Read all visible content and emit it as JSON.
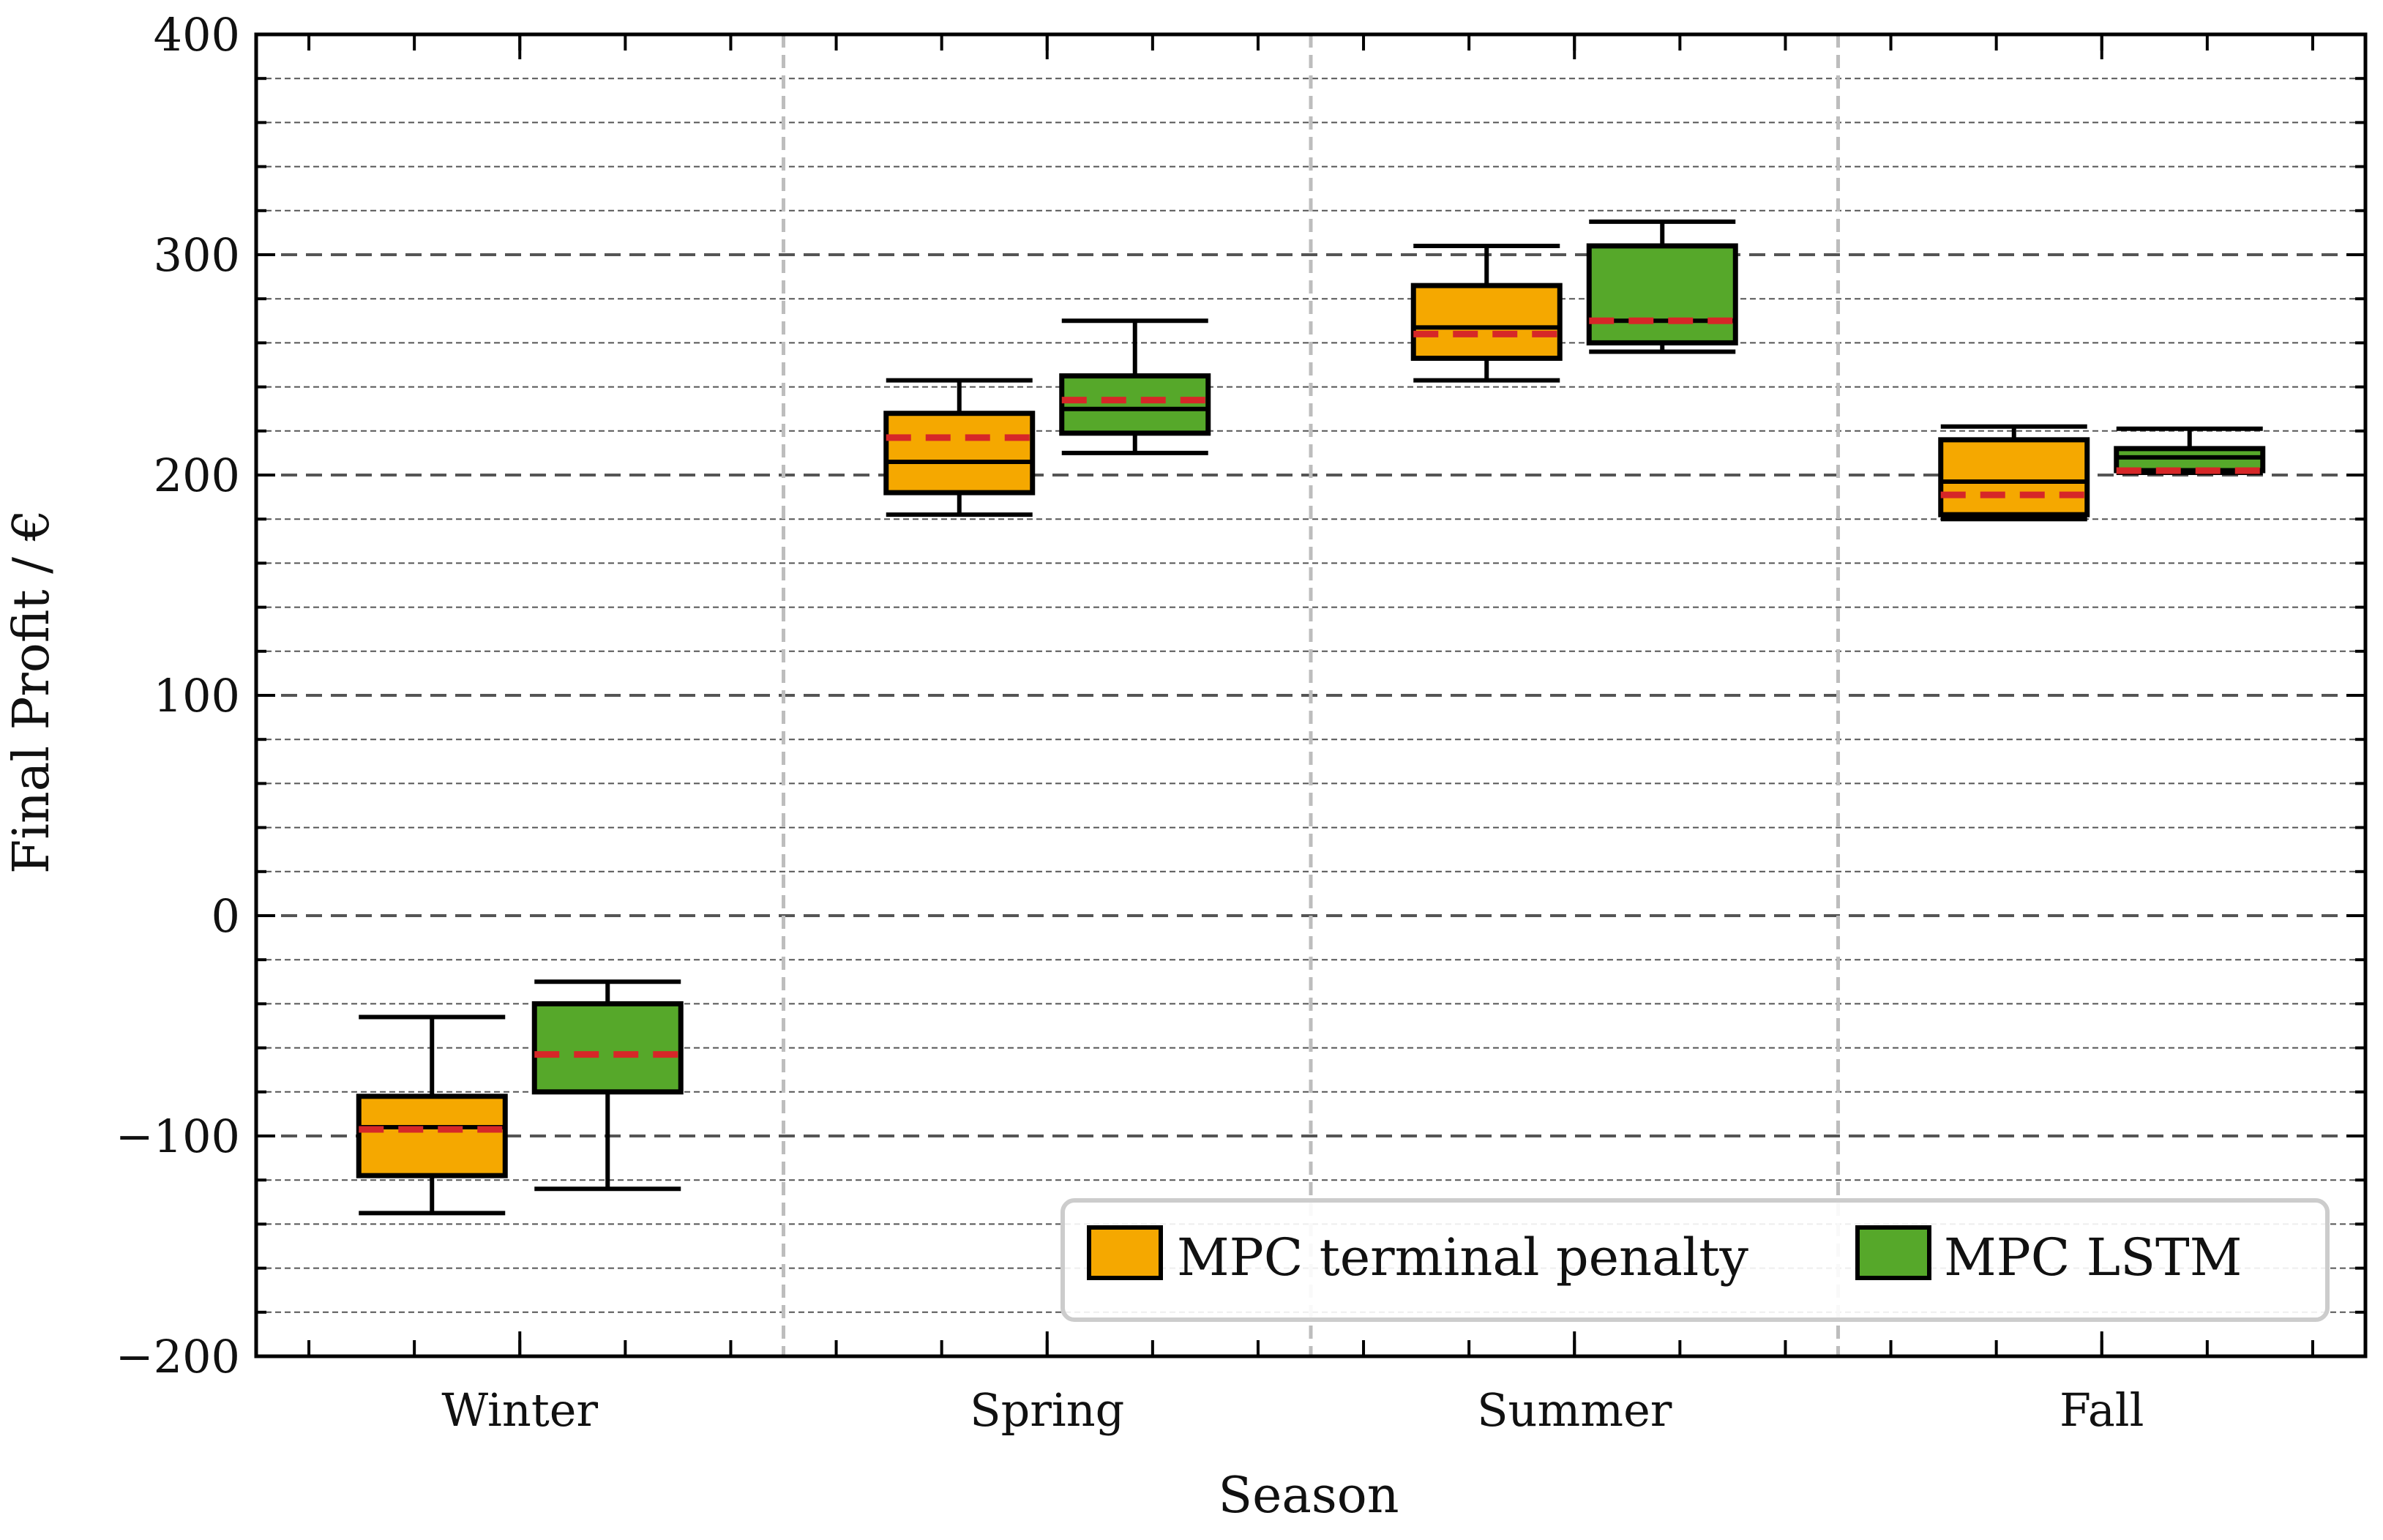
{
  "chart_data": {
    "type": "boxplot",
    "title": "",
    "xlabel": "Season",
    "ylabel": "Final Profit / €",
    "ylim": [
      -200,
      400
    ],
    "yticks": [
      -200,
      -100,
      0,
      100,
      200,
      300,
      400
    ],
    "ytick_labels": [
      "−200",
      "−100",
      "0",
      "100",
      "200",
      "300",
      "400"
    ],
    "categories": [
      "Winter",
      "Spring",
      "Summer",
      "Fall"
    ],
    "grid": true,
    "legend_position": "bottom-right",
    "series": [
      {
        "name": "MPC terminal penalty",
        "color": "#F5A800",
        "boxes": [
          {
            "whisker_low": -135,
            "q1": -118,
            "median": -96,
            "q3": -82,
            "whisker_high": -46,
            "mean": -97
          },
          {
            "whisker_low": 182,
            "q1": 192,
            "median": 206,
            "q3": 228,
            "whisker_high": 243,
            "mean": 217
          },
          {
            "whisker_low": 243,
            "q1": 253,
            "median": 267,
            "q3": 286,
            "whisker_high": 304,
            "mean": 264
          },
          {
            "whisker_low": 180,
            "q1": 182,
            "median": 197,
            "q3": 216,
            "whisker_high": 222,
            "mean": 191
          }
        ]
      },
      {
        "name": "MPC LSTM",
        "color": "#56A82A",
        "boxes": [
          {
            "whisker_low": -124,
            "q1": -80,
            "median": -40,
            "q3": -40,
            "whisker_high": -30,
            "mean": -63
          },
          {
            "whisker_low": 210,
            "q1": 219,
            "median": 230,
            "q3": 245,
            "whisker_high": 270,
            "mean": 234
          },
          {
            "whisker_low": 256,
            "q1": 260,
            "median": 270,
            "q3": 304,
            "whisker_high": 315,
            "mean": 270
          },
          {
            "whisker_low": 201,
            "q1": 202,
            "median": 208,
            "q3": 212,
            "whisker_high": 221,
            "mean": 202
          }
        ]
      }
    ],
    "mean_line_color": "#D62728"
  }
}
